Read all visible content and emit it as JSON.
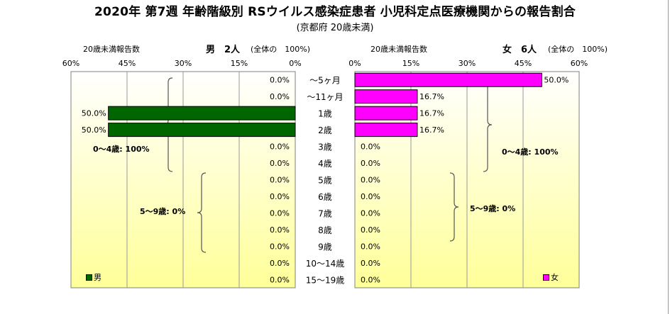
{
  "title": "2020年 第7週 年齢階級別 RSウイルス感染症患者 小児科定点医療機関からの報告割合",
  "subtitle": "(京都府 20歳未満)",
  "colors": {
    "male": "#006600",
    "female": "#ff00ff",
    "panel_bg_top": "#ffffff",
    "panel_bg_bottom": "#ffff99"
  },
  "male_panel": {
    "under20_label": "20歳未満報告数",
    "gender_count": "男　2人",
    "total_note": "(全体の　100%)",
    "brace_labels": [
      "0～4歳: 100%",
      "5～9歳: 0%"
    ],
    "legend": "男"
  },
  "female_panel": {
    "under20_label": "20歳未満報告数",
    "gender_count": "女　6人",
    "total_note": "(全体の　100%)",
    "brace_labels": [
      "0～4歳: 100%",
      "5～9歳: 0%"
    ],
    "legend": "女"
  },
  "chart_data": {
    "type": "bar",
    "orientation": "horizontal-pyramid",
    "categories": [
      "～5ヶ月",
      "～11ヶ月",
      "1歳",
      "2歳",
      "3歳",
      "4歳",
      "5歳",
      "6歳",
      "7歳",
      "8歳",
      "9歳",
      "10～14歳",
      "15～19歳"
    ],
    "series": [
      {
        "name": "男",
        "values": [
          0,
          0,
          50.0,
          50.0,
          0,
          0,
          0,
          0,
          0,
          0,
          0,
          0,
          0
        ],
        "labels": [
          "0.0%",
          "0.0%",
          "50.0%",
          "50.0%",
          "0.0%",
          "0.0%",
          "0.0%",
          "0.0%",
          "0.0%",
          "0.0%",
          "0.0%",
          "0.0%",
          "0.0%"
        ]
      },
      {
        "name": "女",
        "values": [
          50.0,
          16.7,
          16.7,
          16.7,
          0,
          0,
          0,
          0,
          0,
          0,
          0,
          0,
          0
        ],
        "labels": [
          "50.0%",
          "16.7%",
          "16.7%",
          "16.7%",
          "0.0%",
          "0.0%",
          "0.0%",
          "0.0%",
          "0.0%",
          "0.0%",
          "0.0%",
          "0.0%",
          "0.0%"
        ]
      }
    ],
    "x_ticks_male": [
      "60%",
      "45%",
      "30%",
      "15%",
      "0%"
    ],
    "x_ticks_female": [
      "0%",
      "15%",
      "30%",
      "45%",
      "60%"
    ],
    "xlim": [
      0,
      60
    ],
    "grid": true
  }
}
